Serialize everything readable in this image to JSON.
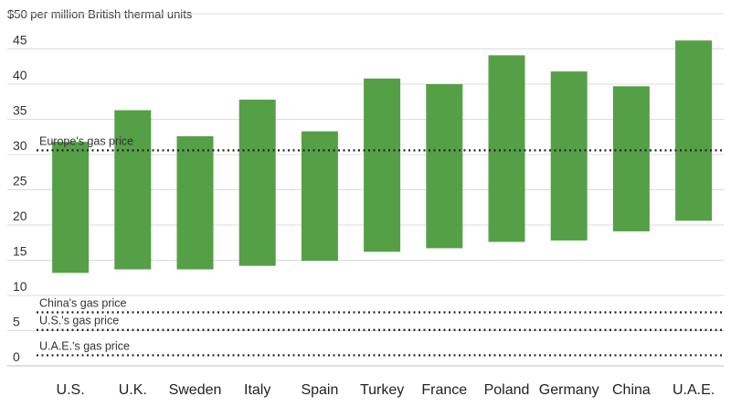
{
  "chart_data": {
    "type": "bar",
    "subtype": "floating-range",
    "title": "",
    "unit_label": "$50 per million British thermal units",
    "xlabel": "",
    "ylabel": "",
    "ylim": [
      0,
      50
    ],
    "yticks": [
      0,
      5,
      10,
      15,
      20,
      25,
      30,
      35,
      40,
      45
    ],
    "grid": true,
    "bar_color": "#55a047",
    "categories": [
      "U.S.",
      "U.K.",
      "Sweden",
      "Italy",
      "Spain",
      "Turkey",
      "France",
      "Poland",
      "Germany",
      "China",
      "U.A.E."
    ],
    "ranges": [
      {
        "low": 13.2,
        "high": 31.8
      },
      {
        "low": 13.7,
        "high": 36.3
      },
      {
        "low": 13.7,
        "high": 32.6
      },
      {
        "low": 14.2,
        "high": 37.8
      },
      {
        "low": 14.9,
        "high": 33.3
      },
      {
        "low": 16.2,
        "high": 40.8
      },
      {
        "low": 16.7,
        "high": 40.0
      },
      {
        "low": 17.6,
        "high": 44.1
      },
      {
        "low": 17.8,
        "high": 41.8
      },
      {
        "low": 19.1,
        "high": 39.7
      },
      {
        "low": 20.6,
        "high": 46.2
      }
    ],
    "reference_lines": [
      {
        "label": "Europe's gas price",
        "value": 30.6
      },
      {
        "label": "China's gas price",
        "value": 7.6
      },
      {
        "label": "U.S.'s gas price",
        "value": 5.1
      },
      {
        "label": "U.A.E.'s gas price",
        "value": 1.5
      }
    ]
  }
}
